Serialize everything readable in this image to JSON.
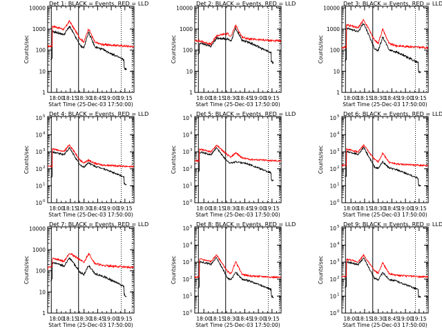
{
  "figure": {
    "xlabel": "Start Time (25-Dec-03 17:50:00)",
    "ylabel": "Counts/sec"
  },
  "colors": {
    "events": "#000000",
    "lld": "#ff0000",
    "axes": "#000000"
  },
  "chart_data": [
    {
      "type": "line",
      "title": "Det 1: BLACK = Events, RED = LLD",
      "y_scale": "log",
      "y_tick_style": "decimal",
      "ylim": [
        1,
        12000
      ],
      "y_ticks": [
        1,
        10,
        100,
        1000,
        10000
      ],
      "x_ticks": [
        "18:00",
        "18:15",
        "18:30",
        "18:45",
        "19:00",
        "19:15"
      ],
      "x_range_min": [
        0,
        95
      ],
      "lld_base": 155,
      "ev_base": null,
      "peaks": [
        [
          24,
          2400,
          1350
        ],
        [
          45,
          1050,
          720
        ]
      ],
      "ratio_late": 0.65
    },
    {
      "type": "line",
      "title": "Det 2: BLACK = Events, RED = LLD",
      "y_scale": "log",
      "y_tick_style": "decimal",
      "ylim": [
        1,
        12000
      ],
      "y_ticks": [
        1,
        10,
        100,
        1000,
        10000
      ],
      "x_ticks": [
        "18:00",
        "18:15",
        "18:30",
        "18:45",
        "19:00",
        "19:15"
      ],
      "x_range_min": [
        0,
        95
      ],
      "lld_base": 280,
      "ev_base": null,
      "peaks": [
        [
          24,
          480,
          380
        ],
        [
          45,
          1500,
          1100
        ]
      ],
      "ratio_late": 0.75
    },
    {
      "type": "line",
      "title": "Det 3: BLACK = Events, RED = LLD",
      "y_scale": "log",
      "y_tick_style": "decimal",
      "ylim": [
        1,
        12000
      ],
      "y_ticks": [
        1,
        10,
        100,
        1000,
        10000
      ],
      "x_ticks": [
        "18:00",
        "18:15",
        "18:30",
        "18:45",
        "19:00",
        "19:15"
      ],
      "x_range_min": [
        0,
        95
      ],
      "lld_base": 135,
      "ev_base": null,
      "peaks": [
        [
          24,
          2800,
          1900
        ],
        [
          45,
          1000,
          420
        ]
      ],
      "ratio_late": 0.55
    },
    {
      "type": "line",
      "title": "Det 4: BLACK = Events, RED = LLD",
      "y_scale": "log",
      "y_tick_style": "power",
      "ylim": [
        1,
        120000
      ],
      "y_ticks": [
        1,
        10,
        100,
        1000,
        10000,
        100000
      ],
      "x_ticks": [
        "18:00",
        "18:15",
        "18:30",
        "18:45",
        "19:00",
        "19:15"
      ],
      "x_range_min": [
        0,
        95
      ],
      "lld_base": 140,
      "ev_base": null,
      "peaks": [
        [
          24,
          2600,
          1700
        ],
        [
          45,
          320,
          230
        ]
      ],
      "ratio_late": 0.7
    },
    {
      "type": "line",
      "title": "Det 5: BLACK = Events, RED = LLD",
      "y_scale": "log",
      "y_tick_style": "power",
      "ylim": [
        1,
        120000
      ],
      "y_ticks": [
        1,
        10,
        100,
        1000,
        10000,
        100000
      ],
      "x_ticks": [
        "18:00",
        "18:15",
        "18:30",
        "18:45",
        "19:00",
        "19:15"
      ],
      "x_range_min": [
        0,
        95
      ],
      "lld_base": 300,
      "ev_base": null,
      "peaks": [
        [
          24,
          2500,
          1700
        ],
        [
          45,
          900,
          260
        ]
      ],
      "ratio_late": 0.55
    },
    {
      "type": "line",
      "title": "Det 6: BLACK = Events, RED = LLD",
      "y_scale": "log",
      "y_tick_style": "power",
      "ylim": [
        1,
        120000
      ],
      "y_ticks": [
        1,
        10,
        100,
        1000,
        10000,
        100000
      ],
      "x_ticks": [
        "18:00",
        "18:15",
        "18:30",
        "18:45",
        "19:00",
        "19:15"
      ],
      "x_range_min": [
        0,
        95
      ],
      "lld_base": 160,
      "ev_base": null,
      "peaks": [
        [
          24,
          2500,
          1800
        ],
        [
          45,
          850,
          260
        ]
      ],
      "ratio_late": 0.5
    },
    {
      "type": "line",
      "title": "Det 7: BLACK = Events, RED = LLD",
      "y_scale": "log",
      "y_tick_style": "decimal",
      "ylim": [
        1,
        12000
      ],
      "y_ticks": [
        1,
        10,
        100,
        1000,
        10000
      ],
      "x_ticks": [
        "18:00",
        "18:15",
        "18:30",
        "18:45",
        "19:00",
        "19:15"
      ],
      "x_range_min": [
        0,
        95
      ],
      "lld_base": 150,
      "ev_base": null,
      "peaks": [
        [
          24,
          700,
          420
        ],
        [
          45,
          680,
          180
        ]
      ],
      "ratio_late": 0.35
    },
    {
      "type": "line",
      "title": "Det 8: BLACK = Events, RED = LLD",
      "y_scale": "log",
      "y_tick_style": "power",
      "ylim": [
        1,
        120000
      ],
      "y_ticks": [
        1,
        10,
        100,
        1000,
        10000,
        100000
      ],
      "x_ticks": [
        "18:00",
        "18:15",
        "18:30",
        "18:45",
        "19:00",
        "19:15"
      ],
      "x_range_min": [
        0,
        95
      ],
      "lld_base": 130,
      "ev_base": null,
      "peaks": [
        [
          24,
          2700,
          1900
        ],
        [
          45,
          1100,
          260
        ]
      ],
      "ratio_late": 0.55
    },
    {
      "type": "line",
      "title": "Det 9: BLACK = Events, RED = LLD",
      "y_scale": "log",
      "y_tick_style": "power",
      "ylim": [
        1,
        120000
      ],
      "y_ticks": [
        1,
        10,
        100,
        1000,
        10000,
        100000
      ],
      "x_ticks": [
        "18:00",
        "18:15",
        "18:30",
        "18:45",
        "19:00",
        "19:15"
      ],
      "x_range_min": [
        0,
        95
      ],
      "lld_base": 140,
      "ev_base": null,
      "peaks": [
        [
          24,
          2600,
          1800
        ],
        [
          45,
          900,
          240
        ]
      ],
      "ratio_late": 0.5
    }
  ],
  "markers": {
    "solid_min": [
      4,
      34
    ],
    "dotted_min": [
      81,
      93
    ]
  }
}
